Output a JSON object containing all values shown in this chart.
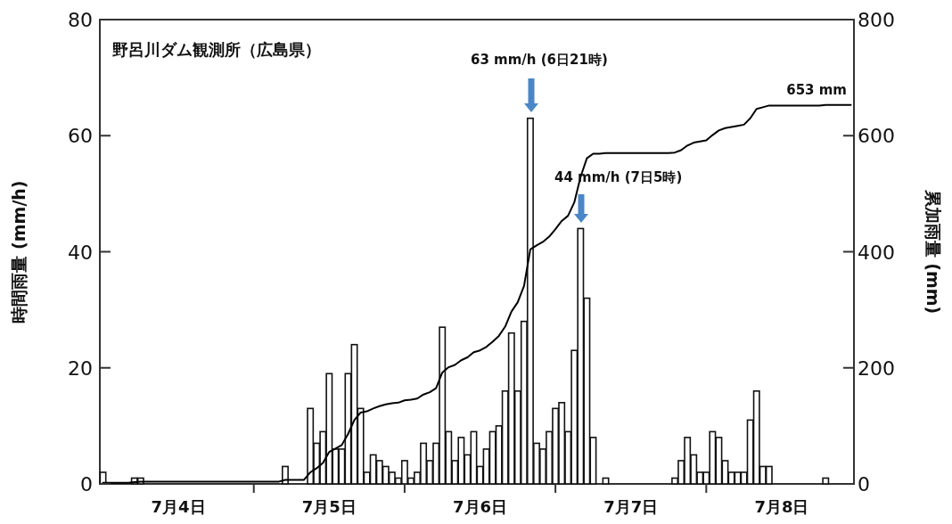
{
  "chart_data": {
    "type": "bar",
    "title": "野呂川ダム観測所（広島県）",
    "ylabel": "時間雨量 (mm/h)",
    "y2label": "累加雨量 (mm)",
    "categories": [
      null,
      null,
      null,
      null,
      null,
      null,
      null,
      null,
      null,
      null,
      null,
      null,
      "7月4日",
      null,
      null,
      null,
      null,
      null,
      null,
      null,
      null,
      null,
      null,
      null,
      null,
      null,
      null,
      null,
      null,
      null,
      null,
      null,
      null,
      null,
      null,
      null,
      "7月5日",
      null,
      null,
      null,
      null,
      null,
      null,
      null,
      null,
      null,
      null,
      null,
      null,
      null,
      null,
      null,
      null,
      null,
      null,
      null,
      null,
      null,
      null,
      null,
      "7月6日",
      null,
      null,
      null,
      null,
      null,
      null,
      null,
      null,
      null,
      null,
      null,
      null,
      null,
      null,
      null,
      null,
      null,
      null,
      null,
      null,
      null,
      null,
      null,
      "7月7日",
      null,
      null,
      null,
      null,
      null,
      null,
      null,
      null,
      null,
      null,
      null,
      null,
      null,
      null,
      null,
      null,
      null,
      null,
      null,
      null,
      null,
      null,
      null,
      "7月8日",
      null,
      null,
      null,
      null,
      null,
      null,
      null,
      null,
      null,
      null,
      null
    ],
    "ylim": [
      0,
      80
    ],
    "yticks": [
      0,
      20,
      40,
      60,
      80
    ],
    "y2lim": [
      0,
      800
    ],
    "y2ticks": [
      0,
      200,
      400,
      600,
      800
    ],
    "series": [
      {
        "type": "bar",
        "color": "#ffffff",
        "values": [
          2,
          0,
          0,
          0,
          0,
          1,
          1,
          0,
          0,
          0,
          0,
          0,
          0,
          0,
          0,
          0,
          0,
          0,
          0,
          0,
          0,
          0,
          0,
          0,
          0,
          0,
          0,
          0,
          0,
          3,
          0,
          0,
          0,
          13,
          7,
          9,
          19,
          6,
          6,
          19,
          24,
          13,
          2,
          5,
          4,
          3,
          2,
          1,
          4,
          1,
          2,
          7,
          4,
          7,
          27,
          9,
          4,
          8,
          5,
          9,
          3,
          6,
          9,
          10,
          16,
          26,
          16,
          28,
          63,
          7,
          6,
          9,
          13,
          14,
          9,
          23,
          44,
          32,
          8,
          0,
          1,
          0,
          0,
          0,
          0,
          0,
          0,
          0,
          0,
          0,
          0,
          1,
          4,
          8,
          5,
          2,
          2,
          9,
          8,
          4,
          2,
          2,
          2,
          11,
          16,
          3,
          3,
          0,
          0,
          0,
          0,
          0,
          0,
          0,
          0,
          1,
          0,
          0,
          0,
          0
        ]
      },
      {
        "type": "line",
        "axis": "y2",
        "color": "#000000",
        "values": [
          2,
          2,
          2,
          2,
          2,
          3,
          4,
          4,
          4,
          4,
          4,
          4,
          4,
          4,
          4,
          4,
          4,
          4,
          4,
          4,
          4,
          4,
          4,
          4,
          4,
          4,
          4,
          4,
          4,
          7,
          7,
          7,
          7,
          20,
          27,
          36,
          55,
          61,
          67,
          86,
          110,
          123,
          125,
          130,
          134,
          137,
          139,
          140,
          144,
          145,
          147,
          154,
          158,
          165,
          192,
          201,
          205,
          213,
          218,
          227,
          230,
          236,
          245,
          255,
          271,
          297,
          313,
          341,
          404,
          411,
          417,
          426,
          439,
          453,
          462,
          485,
          529,
          561,
          569,
          569,
          570,
          570,
          570,
          570,
          570,
          570,
          570,
          570,
          570,
          570,
          570,
          571,
          575,
          583,
          588,
          590,
          592,
          601,
          609,
          613,
          615,
          617,
          619,
          630,
          646,
          649,
          652,
          652,
          652,
          652,
          652,
          652,
          652,
          652,
          652,
          653,
          653,
          653,
          653,
          653
        ]
      }
    ],
    "annotations": [
      "63 mm/h (6日21時)",
      "44 mm/h (7日5時)",
      "653 mm"
    ]
  }
}
